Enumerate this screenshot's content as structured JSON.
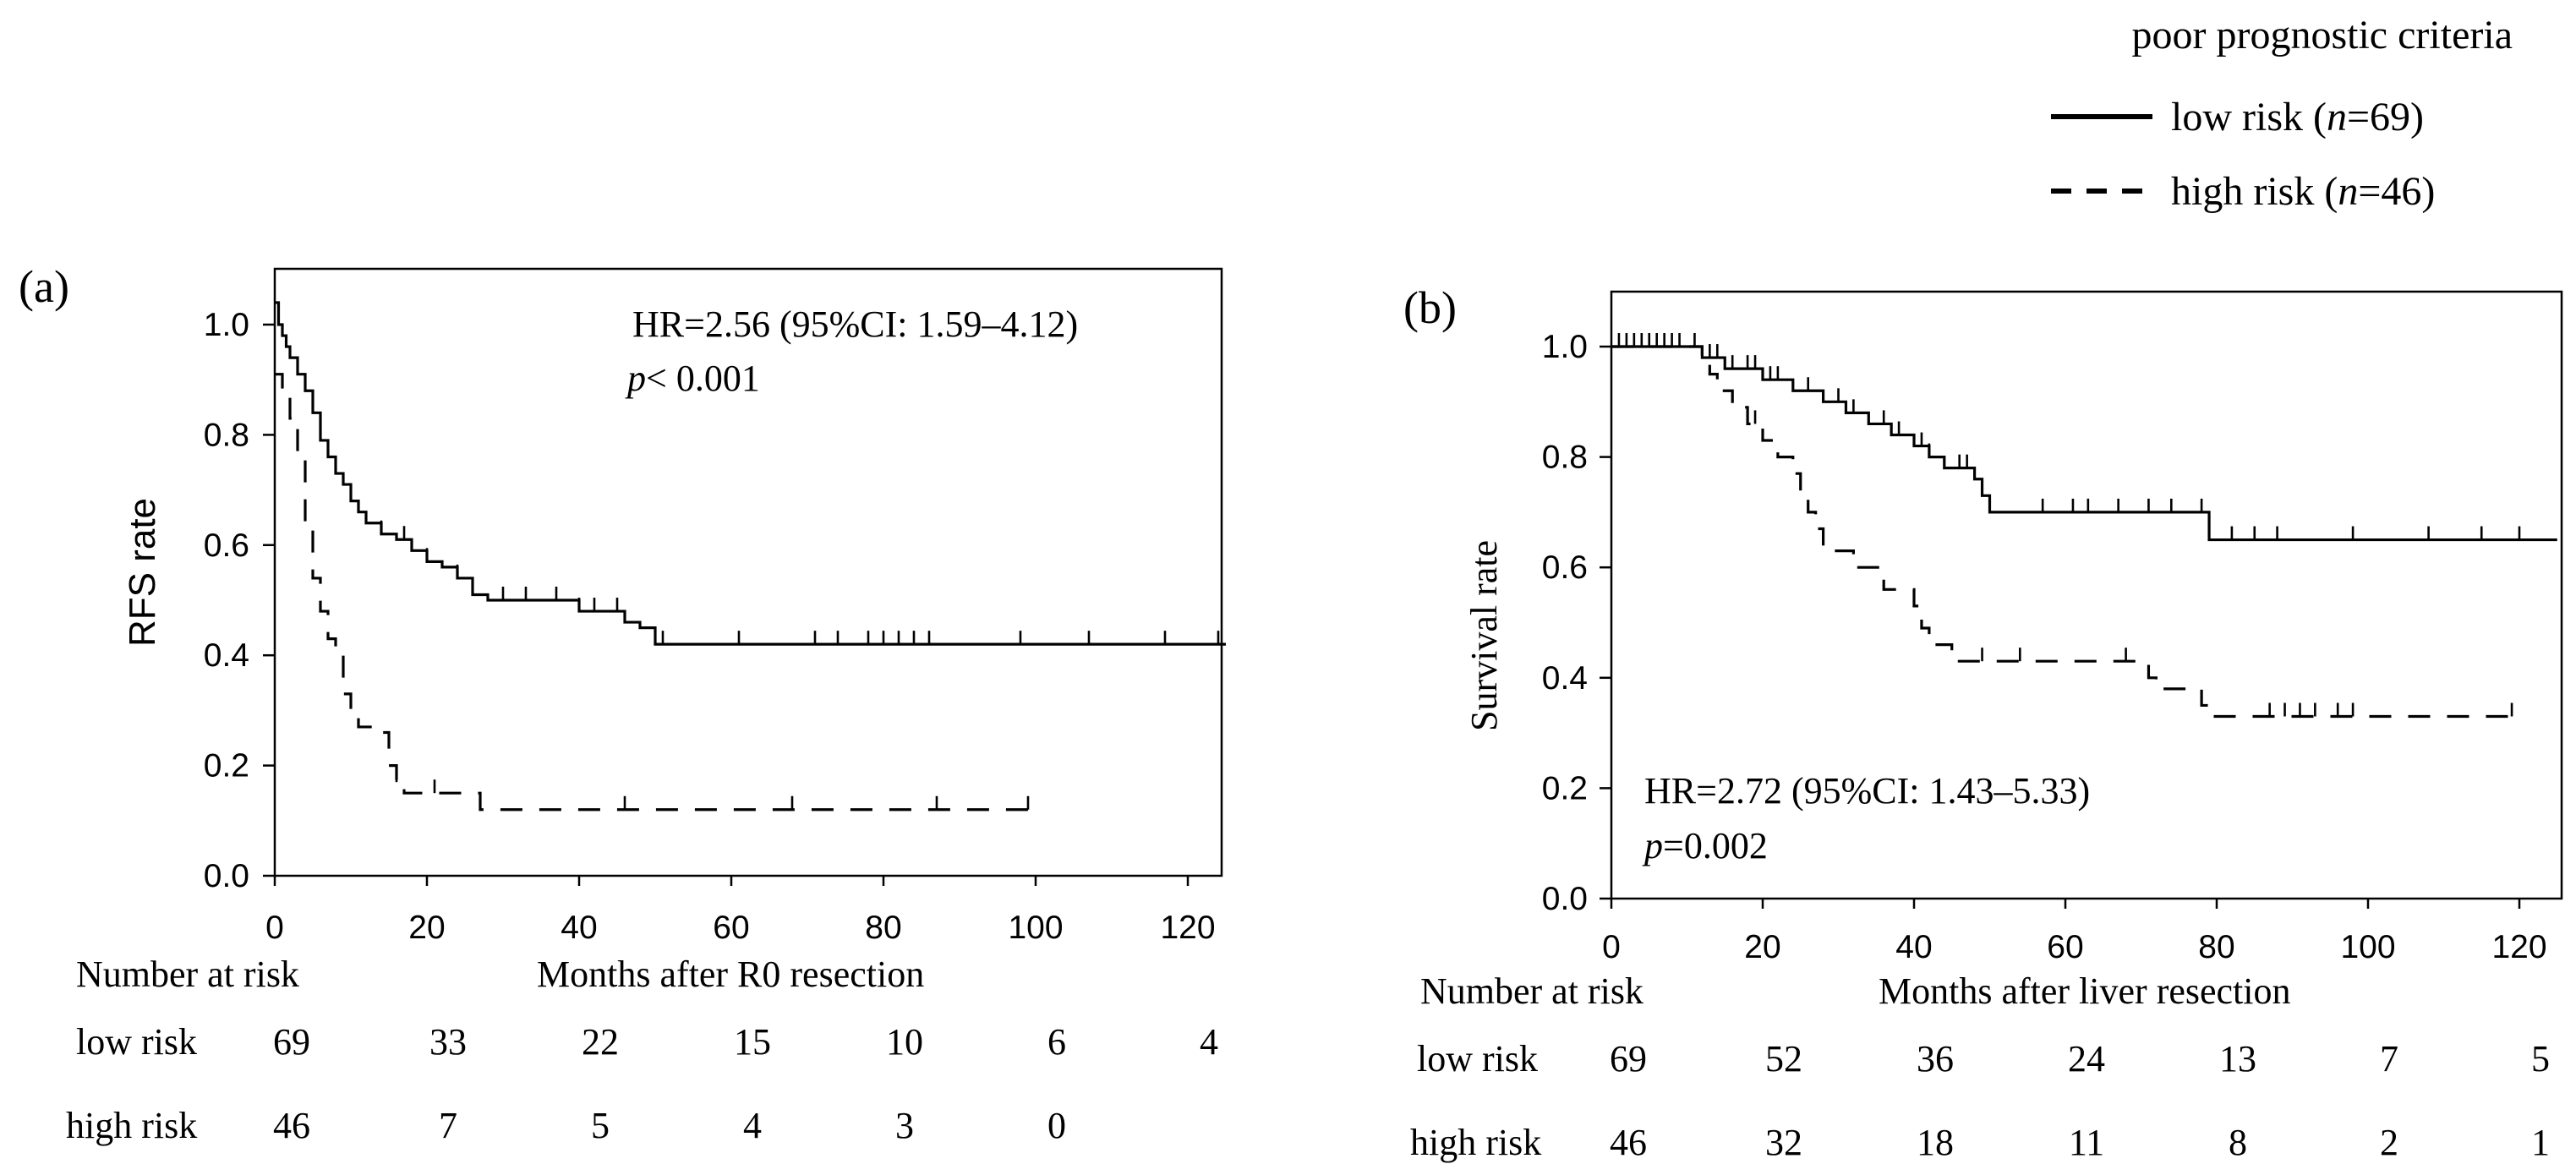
{
  "legend": {
    "title": "poor prognostic criteria",
    "entries": [
      {
        "name": "low risk",
        "n_prefix": "n",
        "n_value": "=69)",
        "prefix": "low risk (",
        "style": "solid"
      },
      {
        "name": "high risk",
        "n_prefix": "n",
        "n_value": "=46)",
        "prefix": "high risk (",
        "style": "dashed"
      }
    ]
  },
  "colors": {
    "line": "#000000",
    "background": "#ffffff"
  },
  "chart_data": [
    {
      "type": "line",
      "panel_label": "(a)",
      "title": "",
      "xlabel": "Months after R0 resection",
      "ylabel": "RFS rate",
      "xlim": [
        0,
        125
      ],
      "ylim": [
        0,
        1.05
      ],
      "xticks": [
        "0",
        "20",
        "40",
        "60",
        "80",
        "100",
        "120"
      ],
      "yticks": [
        "0.0",
        "0.2",
        "0.4",
        "0.6",
        "0.8",
        "1.0"
      ],
      "annotation": {
        "hr": "HR=2.56  (95%CI: 1.59–4.12)",
        "p_symbol": "p",
        "p_value": "< 0.001"
      },
      "series": [
        {
          "name": "low risk",
          "style": "solid",
          "steps": [
            [
              0,
              1.04
            ],
            [
              0.5,
              1.0
            ],
            [
              1,
              0.98
            ],
            [
              1.5,
              0.96
            ],
            [
              2,
              0.94
            ],
            [
              3,
              0.91
            ],
            [
              4,
              0.88
            ],
            [
              5,
              0.84
            ],
            [
              6,
              0.79
            ],
            [
              7,
              0.76
            ],
            [
              8,
              0.73
            ],
            [
              9,
              0.71
            ],
            [
              10,
              0.68
            ],
            [
              11,
              0.66
            ],
            [
              12,
              0.64
            ],
            [
              14,
              0.62
            ],
            [
              16,
              0.61
            ],
            [
              18,
              0.59
            ],
            [
              20,
              0.57
            ],
            [
              22,
              0.56
            ],
            [
              24,
              0.54
            ],
            [
              26,
              0.51
            ],
            [
              28,
              0.5
            ],
            [
              40,
              0.48
            ],
            [
              46,
              0.46
            ],
            [
              48,
              0.45
            ],
            [
              50,
              0.42
            ],
            [
              125,
              0.42
            ]
          ],
          "censored": [
            14,
            17,
            20,
            24,
            26,
            30,
            33,
            37,
            40,
            42,
            45,
            51,
            61,
            71,
            74,
            78,
            80,
            82,
            84,
            86,
            98,
            107,
            117,
            124
          ]
        },
        {
          "name": "high risk",
          "style": "dashed",
          "steps": [
            [
              0,
              0.91
            ],
            [
              1,
              0.87
            ],
            [
              2,
              0.83
            ],
            [
              3,
              0.76
            ],
            [
              4,
              0.63
            ],
            [
              5,
              0.54
            ],
            [
              6,
              0.48
            ],
            [
              7,
              0.43
            ],
            [
              8,
              0.4
            ],
            [
              9,
              0.33
            ],
            [
              10,
              0.3
            ],
            [
              11,
              0.27
            ],
            [
              13,
              0.26
            ],
            [
              15,
              0.2
            ],
            [
              16,
              0.17
            ],
            [
              17,
              0.15
            ],
            [
              23,
              0.15
            ],
            [
              27,
              0.12
            ],
            [
              100,
              0.12
            ]
          ],
          "censored": [
            16,
            21,
            46,
            68,
            87,
            99
          ]
        }
      ],
      "risk_table": {
        "header": "Number at risk",
        "time_points": [
          0,
          20,
          40,
          60,
          80,
          100,
          120
        ],
        "rows": [
          {
            "label": "low risk",
            "values": [
              "69",
              "33",
              "22",
              "15",
              "10",
              "6",
              "4"
            ]
          },
          {
            "label": "high risk",
            "values": [
              "46",
              "7",
              "5",
              "4",
              "3",
              "0"
            ]
          }
        ]
      }
    },
    {
      "type": "line",
      "panel_label": "(b)",
      "title": "",
      "xlabel": "Months after liver resection",
      "ylabel": "Survival rate",
      "xlim": [
        0,
        125
      ],
      "ylim": [
        0,
        1.1
      ],
      "xticks": [
        "0",
        "20",
        "40",
        "60",
        "80",
        "100",
        "120"
      ],
      "yticks": [
        "0.0",
        "0.2",
        "0.4",
        "0.6",
        "0.8",
        "1.0"
      ],
      "annotation": {
        "hr": "HR=2.72  (95%CI: 1.43–5.33)",
        "p_symbol": "p",
        "p_value": "=0.002"
      },
      "series": [
        {
          "name": "low risk",
          "style": "solid",
          "steps": [
            [
              0,
              1.0
            ],
            [
              12,
              0.98
            ],
            [
              15,
              0.96
            ],
            [
              20,
              0.94
            ],
            [
              24,
              0.92
            ],
            [
              28,
              0.9
            ],
            [
              31,
              0.88
            ],
            [
              34,
              0.86
            ],
            [
              37,
              0.84
            ],
            [
              40,
              0.82
            ],
            [
              42,
              0.8
            ],
            [
              44,
              0.78
            ],
            [
              48,
              0.76
            ],
            [
              49,
              0.73
            ],
            [
              50,
              0.7
            ],
            [
              71,
              0.7
            ],
            [
              79,
              0.65
            ],
            [
              125,
              0.65
            ]
          ],
          "censored": [
            1,
            2,
            3,
            4,
            5,
            6,
            8,
            9,
            11,
            13,
            14,
            16,
            18,
            19,
            21,
            22,
            26,
            30,
            32,
            36,
            38,
            41,
            42,
            46,
            47,
            57,
            61,
            63,
            67,
            71,
            74,
            78,
            82,
            85,
            88,
            98,
            108,
            115,
            120
          ]
        },
        {
          "name": "high risk",
          "style": "dashed",
          "steps": [
            [
              0,
              1.0
            ],
            [
              12,
              0.98
            ],
            [
              13,
              0.95
            ],
            [
              14,
              0.92
            ],
            [
              16,
              0.89
            ],
            [
              18,
              0.86
            ],
            [
              20,
              0.83
            ],
            [
              22,
              0.8
            ],
            [
              24,
              0.77
            ],
            [
              25,
              0.73
            ],
            [
              26,
              0.7
            ],
            [
              27,
              0.67
            ],
            [
              28,
              0.63
            ],
            [
              32,
              0.6
            ],
            [
              36,
              0.56
            ],
            [
              40,
              0.53
            ],
            [
              41,
              0.49
            ],
            [
              42,
              0.46
            ],
            [
              45,
              0.43
            ],
            [
              68,
              0.43
            ],
            [
              71,
              0.4
            ],
            [
              72,
              0.38
            ],
            [
              78,
              0.35
            ],
            [
              79,
              0.33
            ],
            [
              120,
              0.33
            ]
          ],
          "censored": [
            7,
            19,
            49,
            54,
            68,
            87,
            89,
            91,
            93,
            96,
            98,
            119
          ]
        }
      ],
      "risk_table": {
        "header": "Number at risk",
        "time_points": [
          0,
          20,
          40,
          60,
          80,
          100,
          120
        ],
        "rows": [
          {
            "label": "low risk",
            "values": [
              "69",
              "52",
              "36",
              "24",
              "13",
              "7",
              "5"
            ]
          },
          {
            "label": "high risk",
            "values": [
              "46",
              "32",
              "18",
              "11",
              "8",
              "2",
              "1"
            ]
          }
        ]
      }
    }
  ]
}
